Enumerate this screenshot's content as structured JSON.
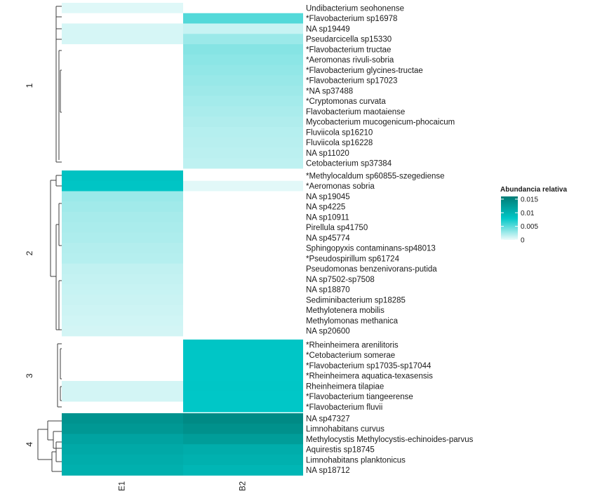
{
  "chart_data": {
    "type": "heatmap",
    "title": "",
    "columns": [
      "E1",
      "B2"
    ],
    "color_scale": {
      "low": "#eefbfb",
      "mid": "#00c7c7",
      "high": "#007c76",
      "missing": "#ffffff",
      "range": [
        0,
        0.016
      ]
    },
    "legend": {
      "title": "Abundancia relativa",
      "ticks": [
        "0.015",
        "0.01",
        "0.005",
        "0"
      ],
      "tick_values": [
        0.015,
        0.01,
        0.005,
        0
      ],
      "placement": "right"
    },
    "clusters": [
      {
        "label": "1",
        "rows": [
          {
            "name": "Undibacterium seohonense",
            "values": [
              0.0005,
              null
            ]
          },
          {
            "name": "*Flavobacterium sp16978",
            "values": [
              null,
              0.0052
            ]
          },
          {
            "name": "NA sp19449",
            "values": [
              0.0008,
              0.0013
            ]
          },
          {
            "name": "Pseudarcicella sp15330",
            "values": [
              0.0008,
              0.0028
            ]
          },
          {
            "name": "*Flavobacterium tructae",
            "values": [
              null,
              0.0035
            ]
          },
          {
            "name": "*Aeromonas rivuli-sobria",
            "values": [
              null,
              0.0033
            ]
          },
          {
            "name": "*Flavobacterium glycines-tructae",
            "values": [
              null,
              0.0031
            ]
          },
          {
            "name": "*Flavobacterium sp17023",
            "values": [
              null,
              0.0029
            ]
          },
          {
            "name": "*NA sp37488",
            "values": [
              null,
              0.0027
            ]
          },
          {
            "name": "*Cryptomonas curvata",
            "values": [
              null,
              0.0025
            ]
          },
          {
            "name": "Flavobacterium maotaiense",
            "values": [
              null,
              0.0023
            ]
          },
          {
            "name": "Mycobacterium mucogenicum-phocaicum",
            "values": [
              null,
              0.0021
            ]
          },
          {
            "name": "Fluviicola sp16210",
            "values": [
              null,
              0.0019
            ]
          },
          {
            "name": "Fluviicola sp16228",
            "values": [
              null,
              0.0018
            ]
          },
          {
            "name": "NA sp11020",
            "values": [
              null,
              0.0017
            ]
          },
          {
            "name": "Cetobacterium sp37384",
            "values": [
              null,
              0.0016
            ]
          }
        ]
      },
      {
        "label": "2",
        "rows": [
          {
            "name": "*Methylocaldum sp60855-szegediense",
            "values": [
              0.0085,
              null
            ]
          },
          {
            "name": "*Aeromonas sobria",
            "values": [
              0.0082,
              0.0004
            ]
          },
          {
            "name": "NA sp19045",
            "values": [
              0.0028,
              null
            ]
          },
          {
            "name": "NA sp4225",
            "values": [
              0.0026,
              null
            ]
          },
          {
            "name": "NA sp10911",
            "values": [
              0.0024,
              null
            ]
          },
          {
            "name": "Pirellula sp41750",
            "values": [
              0.0023,
              null
            ]
          },
          {
            "name": "NA sp45774",
            "values": [
              0.0022,
              null
            ]
          },
          {
            "name": "Sphingopyxis contaminans-sp48013",
            "values": [
              0.002,
              null
            ]
          },
          {
            "name": "*Pseudospirillum sp61724",
            "values": [
              0.0019,
              null
            ]
          },
          {
            "name": "Pseudomonas benzenivorans-putida",
            "values": [
              0.0015,
              null
            ]
          },
          {
            "name": "NA sp7502-sp7508",
            "values": [
              0.0014,
              null
            ]
          },
          {
            "name": "NA sp18870",
            "values": [
              0.0013,
              null
            ]
          },
          {
            "name": "Sediminibacterium sp18285",
            "values": [
              0.0012,
              null
            ]
          },
          {
            "name": "Methylotenera mobilis",
            "values": [
              0.0011,
              null
            ]
          },
          {
            "name": "Methylomonas methanica",
            "values": [
              0.001,
              null
            ]
          },
          {
            "name": "NA sp20600",
            "values": [
              0.0009,
              null
            ]
          }
        ]
      },
      {
        "label": "3",
        "rows": [
          {
            "name": "*Rheinheimera arenilitoris",
            "values": [
              null,
              0.0082
            ]
          },
          {
            "name": "*Cetobacterium somerae",
            "values": [
              null,
              0.0081
            ]
          },
          {
            "name": "*Flavobacterium sp17035-sp17044",
            "values": [
              null,
              0.0081
            ]
          },
          {
            "name": "*Rheinheimera aquatica-texasensis",
            "values": [
              null,
              0.008
            ]
          },
          {
            "name": "Rheinheimera tilapiae",
            "values": [
              0.0009,
              0.0081
            ]
          },
          {
            "name": "*Flavobacterium tiangeerense",
            "values": [
              0.0009,
              0.008
            ]
          },
          {
            "name": "*Flavobacterium fluvii",
            "values": [
              null,
              0.008
            ]
          }
        ]
      },
      {
        "label": "4",
        "rows": [
          {
            "name": "NA sp47327",
            "values": [
              0.0135,
              0.0145
            ]
          },
          {
            "name": "Limnohabitans curvus",
            "values": [
              0.013,
              0.0138
            ]
          },
          {
            "name": "Methylocystis Methylocystis-echinoides-parvus",
            "values": [
              0.0118,
              0.0125
            ]
          },
          {
            "name": "Aquirestis sp18745",
            "values": [
              0.0112,
              0.0108
            ]
          },
          {
            "name": "Limnohabitans planktonicus",
            "values": [
              0.0108,
              0.0104
            ]
          },
          {
            "name": "NA sp18712",
            "values": [
              0.0105,
              0.0098
            ]
          }
        ]
      }
    ]
  }
}
